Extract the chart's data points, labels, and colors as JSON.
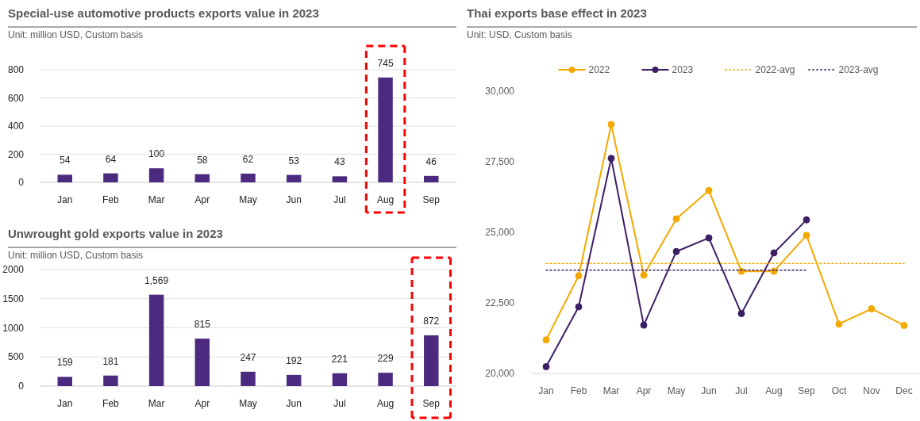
{
  "chart_data": [
    {
      "type": "bar",
      "title": "Special-use automotive products exports value in 2023",
      "subtitle": "Unit: million USD, Custom basis",
      "categories": [
        "Jan",
        "Feb",
        "Mar",
        "Apr",
        "May",
        "Jun",
        "Jul",
        "Aug",
        "Sep"
      ],
      "values": [
        54,
        64,
        100,
        58,
        62,
        53,
        43,
        745,
        46
      ],
      "color": "#4b2a80",
      "ylim": [
        0,
        800
      ],
      "yticks": [
        0,
        200,
        400,
        600,
        800
      ],
      "grid": "y",
      "data_labels": true
    },
    {
      "type": "bar",
      "title": "Unwrought gold exports value in 2023",
      "subtitle": "Unit: million USD, Custom basis",
      "categories": [
        "Jan",
        "Feb",
        "Mar",
        "Apr",
        "May",
        "Jun",
        "Jul",
        "Aug",
        "Sep"
      ],
      "values": [
        159,
        181,
        1569,
        815,
        247,
        192,
        221,
        229,
        872
      ],
      "value_labels": [
        "159",
        "181",
        "1,569",
        "815",
        "247",
        "192",
        "221",
        "229",
        "872"
      ],
      "color": "#4b2a80",
      "ylim": [
        0,
        2000
      ],
      "yticks": [
        0,
        500,
        1000,
        1500,
        2000
      ],
      "grid": "y"
    },
    {
      "type": "line",
      "title": "Thai exports base effect in 2023",
      "subtitle": "Unit: USD, Custom basis",
      "categories": [
        "Jan",
        "Feb",
        "Mar",
        "Apr",
        "May",
        "Jun",
        "Jul",
        "Aug",
        "Sep",
        "Oct",
        "Nov",
        "Dec"
      ],
      "series": [
        {
          "name": "2022",
          "color": "#f5a800",
          "marker": "circle",
          "line_style": "solid",
          "values": [
            21190,
            23460,
            28820,
            23480,
            25480,
            26480,
            23620,
            23620,
            24890,
            21750,
            22290,
            21700
          ]
        },
        {
          "name": "2023",
          "color": "#3d1f66",
          "marker": "circle",
          "line_style": "solid",
          "values": [
            20240,
            22360,
            27620,
            21710,
            24320,
            24800,
            22120,
            24270,
            25440,
            null,
            null,
            null
          ]
        },
        {
          "name": "2022-avg",
          "color": "#f5a800",
          "marker": "none",
          "line_style": "dotted",
          "values": [
            23900,
            23900,
            23900,
            23900,
            23900,
            23900,
            23900,
            23900,
            23900,
            23900,
            23900,
            23900
          ]
        },
        {
          "name": "2023-avg",
          "color": "#3d1f66",
          "marker": "none",
          "line_style": "dotted",
          "values": [
            23660,
            23660,
            23660,
            23660,
            23660,
            23660,
            23660,
            23660,
            23660,
            null,
            null,
            null
          ]
        }
      ],
      "ylim": [
        20000,
        30000
      ],
      "yticks": [
        {
          "value": 20000,
          "label": "20,000"
        },
        {
          "value": 22500,
          "label": "22,500"
        },
        {
          "value": 25000,
          "label": "25,000"
        },
        {
          "value": 27500,
          "label": "27,500"
        },
        {
          "value": 30000,
          "label": "30,000"
        }
      ],
      "grid": false,
      "legend": "top"
    }
  ]
}
